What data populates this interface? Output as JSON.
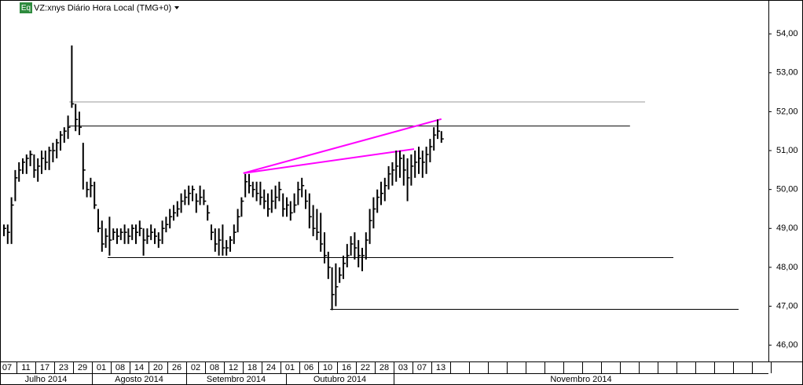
{
  "chart_data": {
    "type": "ohlc",
    "badge": "Eq",
    "title": "VZ:xnys Diário Hora Local (TMG+0)",
    "color": "#000000",
    "high": [
      49.1,
      49.1,
      49.8,
      50.5,
      50.7,
      50.8,
      50.9,
      51.0,
      50.9,
      50.8,
      51.0,
      51.0,
      51.1,
      51.2,
      51.3,
      51.5,
      51.6,
      51.9,
      53.7,
      52.2,
      52.0,
      51.2,
      50.2,
      50.3,
      50.2,
      49.5,
      49.2,
      49.0,
      49.3,
      49.0,
      49.0,
      49.0,
      49.1,
      49.0,
      49.1,
      49.1,
      49.2,
      49.0,
      49.0,
      49.1,
      49.0,
      48.9,
      49.2,
      49.3,
      49.5,
      49.6,
      49.7,
      49.9,
      50.0,
      50.1,
      50.1,
      49.9,
      50.1,
      50.0,
      49.6,
      49.1,
      49.0,
      49.0,
      49.1,
      48.7,
      48.8,
      49.1,
      49.5,
      49.8,
      50.4,
      50.4,
      50.2,
      50.2,
      50.2,
      50.0,
      49.9,
      50.0,
      50.1,
      50.2,
      49.9,
      49.8,
      49.7,
      49.9,
      50.2,
      50.3,
      50.0,
      49.9,
      49.6,
      49.5,
      49.4,
      48.9,
      48.4,
      48.0,
      48.1,
      48.0,
      48.3,
      48.6,
      48.8,
      48.9,
      48.7,
      48.5,
      48.9,
      49.5,
      49.8,
      50.0,
      50.2,
      50.3,
      50.6,
      50.7,
      51.0,
      51.0,
      50.9,
      50.8,
      50.9,
      51.0,
      51.1,
      51.0,
      51.1,
      51.3,
      51.6,
      51.8,
      51.5
    ],
    "low": [
      48.8,
      48.6,
      48.6,
      49.7,
      50.2,
      50.4,
      50.4,
      50.6,
      50.3,
      50.2,
      50.4,
      50.5,
      50.5,
      50.7,
      50.8,
      51.0,
      51.2,
      51.3,
      52.1,
      51.5,
      51.4,
      50.0,
      49.8,
      49.8,
      49.5,
      48.9,
      48.4,
      48.5,
      48.3,
      48.7,
      48.6,
      48.7,
      48.6,
      48.6,
      48.7,
      48.6,
      48.8,
      48.3,
      48.6,
      48.7,
      48.6,
      48.5,
      48.6,
      48.9,
      49.0,
      49.2,
      49.3,
      49.4,
      49.6,
      49.6,
      49.7,
      49.4,
      49.6,
      49.6,
      49.2,
      48.7,
      48.4,
      48.3,
      48.3,
      48.3,
      48.4,
      48.6,
      48.9,
      49.3,
      49.8,
      49.9,
      49.8,
      49.7,
      49.6,
      49.5,
      49.3,
      49.4,
      49.5,
      49.7,
      49.3,
      49.3,
      49.2,
      49.4,
      49.6,
      49.8,
      49.5,
      49.0,
      48.8,
      48.7,
      48.4,
      48.1,
      47.7,
      46.9,
      47.0,
      47.6,
      47.7,
      48.0,
      48.3,
      48.2,
      48.0,
      47.9,
      48.2,
      48.6,
      49.0,
      49.4,
      49.6,
      49.7,
      50.0,
      50.1,
      50.2,
      50.3,
      50.1,
      49.7,
      50.1,
      50.3,
      50.4,
      50.3,
      50.4,
      50.7,
      51.0,
      51.3,
      51.2
    ],
    "close": [
      49.0,
      48.9,
      49.6,
      50.3,
      50.5,
      50.7,
      50.8,
      50.9,
      50.5,
      50.6,
      50.8,
      50.7,
      51.0,
      51.0,
      51.2,
      51.4,
      51.5,
      51.6,
      52.2,
      51.8,
      51.6,
      50.5,
      50.0,
      50.1,
      49.6,
      49.0,
      48.6,
      48.8,
      48.7,
      48.9,
      48.8,
      48.9,
      48.9,
      48.8,
      49.0,
      48.9,
      49.0,
      48.7,
      48.8,
      48.9,
      48.8,
      48.7,
      49.0,
      49.1,
      49.3,
      49.4,
      49.5,
      49.7,
      49.8,
      49.9,
      50.0,
      49.7,
      49.8,
      49.7,
      49.4,
      48.9,
      48.6,
      48.7,
      48.5,
      48.5,
      48.7,
      48.9,
      49.3,
      49.7,
      50.2,
      50.1,
      50.0,
      49.9,
      49.8,
      49.7,
      49.5,
      49.7,
      49.8,
      50.0,
      49.5,
      49.6,
      49.4,
      49.6,
      50.0,
      50.1,
      49.7,
      49.3,
      49.0,
      48.9,
      48.6,
      48.3,
      48.0,
      47.3,
      47.5,
      47.8,
      48.1,
      48.3,
      48.6,
      48.5,
      48.3,
      48.3,
      48.7,
      49.2,
      49.5,
      49.8,
      49.9,
      50.1,
      50.4,
      50.5,
      50.6,
      50.8,
      50.5,
      50.3,
      50.6,
      50.7,
      50.8,
      50.7,
      50.9,
      51.1,
      51.4,
      51.5,
      51.3
    ],
    "ylim": [
      45.58,
      54.87
    ],
    "yticks": [
      {
        "value": 46,
        "label": "46,00"
      },
      {
        "value": 47,
        "label": "47,00"
      },
      {
        "value": 48,
        "label": "48,00"
      },
      {
        "value": 49,
        "label": "49,00"
      },
      {
        "value": 50,
        "label": "50,00"
      },
      {
        "value": 51,
        "label": "51,00"
      },
      {
        "value": 52,
        "label": "52,00"
      },
      {
        "value": 53,
        "label": "53,00"
      },
      {
        "value": 54,
        "label": "54,00"
      }
    ],
    "day_labels": [
      "07",
      "11",
      "17",
      "23",
      "29",
      "01",
      "08",
      "14",
      "20",
      "26",
      "02",
      "08",
      "12",
      "18",
      "24",
      "01",
      "06",
      "10",
      "16",
      "22",
      "28",
      "03",
      "07",
      "13",
      null,
      null,
      null,
      null,
      null,
      null,
      null,
      null,
      null,
      null,
      null,
      null,
      null,
      null,
      null,
      null,
      null
    ],
    "month_labels": [
      "Julho 2014",
      "Agosto 2014",
      "Setembro 2014",
      "Outubro 2014",
      "Novembro 2014"
    ],
    "hlines": [
      {
        "price": 52.25,
        "from": 17.3,
        "to": 170,
        "color": "#999999"
      },
      {
        "price": 51.63,
        "from": 17.3,
        "to": 166,
        "color": "#000000"
      },
      {
        "price": 48.25,
        "from": 27.5,
        "to": 177.5,
        "color": "#000000"
      },
      {
        "price": 46.92,
        "from": 86.5,
        "to": 194.8,
        "color": "#000000"
      }
    ],
    "trendlines": [
      {
        "from": [
          63.5,
          50.42
        ],
        "to": [
          116,
          51.81
        ],
        "color": "#ff00ff"
      },
      {
        "from": [
          63.5,
          50.42
        ],
        "to": [
          108.75,
          51.04
        ],
        "color": "#ff00ff"
      }
    ]
  }
}
